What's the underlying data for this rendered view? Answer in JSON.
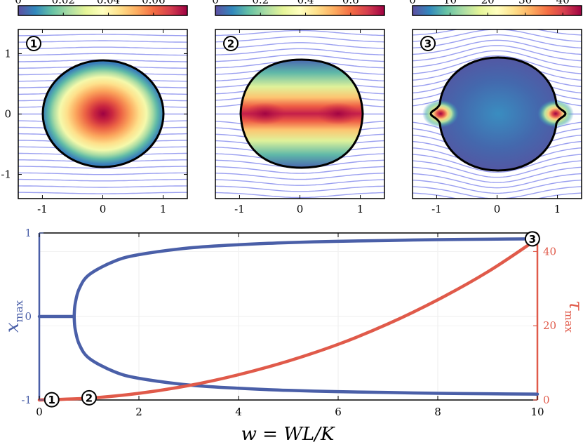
{
  "chart_data": [
    {
      "type": "heatmap",
      "panel": "1",
      "colorbar_ticks": [
        "0",
        "0.02",
        "0.04",
        "0.06"
      ],
      "colorbar_range": [
        0,
        0.075
      ],
      "x_ticks": [
        "-1",
        "0",
        "1"
      ],
      "y_ticks": [
        "1",
        "0",
        "-1"
      ],
      "xlim": [
        -1.4,
        1.4
      ],
      "ylim": [
        -1.4,
        1.4
      ],
      "marker": "①"
    },
    {
      "type": "heatmap",
      "panel": "2",
      "colorbar_ticks": [
        "0",
        "0.2",
        "0.4",
        "0.6"
      ],
      "colorbar_range": [
        0,
        0.75
      ],
      "x_ticks": [
        "-1",
        "0",
        "1"
      ],
      "xlim": [
        -1.4,
        1.4
      ],
      "ylim": [
        -1.4,
        1.4
      ],
      "marker": "②"
    },
    {
      "type": "heatmap",
      "panel": "3",
      "colorbar_ticks": [
        "0",
        "10",
        "20",
        "30",
        "40"
      ],
      "colorbar_range": [
        0,
        45
      ],
      "x_ticks": [
        "-1",
        "0",
        "1"
      ],
      "xlim": [
        -1.4,
        1.4
      ],
      "ylim": [
        -1.4,
        1.4
      ],
      "marker": "③"
    },
    {
      "type": "line",
      "xlabel": "w = WL/K",
      "ylabel_left": "x",
      "ylabel_left_sub": "max",
      "ylabel_right": "τ",
      "ylabel_right_sub": "max",
      "x_ticks": [
        "0",
        "2",
        "4",
        "6",
        "8",
        "10"
      ],
      "y_left_ticks": [
        "1",
        "0",
        "-1"
      ],
      "y_right_ticks": [
        "40",
        "20",
        "0"
      ],
      "xlim": [
        0,
        10
      ],
      "ylim_left": [
        -1,
        1
      ],
      "ylim_right": [
        0,
        45
      ],
      "bifurcation_w": 0.7,
      "series": [
        {
          "name": "x_max upper",
          "color": "#4a5fa8",
          "x": [
            0,
            0.7,
            0.72,
            0.8,
            1,
            1.5,
            2,
            3,
            4,
            5,
            6,
            7,
            8,
            9,
            10
          ],
          "y": [
            0,
            0,
            0.15,
            0.33,
            0.5,
            0.66,
            0.74,
            0.82,
            0.86,
            0.885,
            0.9,
            0.91,
            0.92,
            0.925,
            0.93
          ]
        },
        {
          "name": "x_max lower",
          "color": "#4a5fa8",
          "x": [
            0.7,
            0.72,
            0.8,
            1,
            1.5,
            2,
            3,
            4,
            5,
            6,
            7,
            8,
            9,
            10
          ],
          "y": [
            0,
            -0.15,
            -0.33,
            -0.5,
            -0.66,
            -0.74,
            -0.82,
            -0.86,
            -0.885,
            -0.9,
            -0.91,
            -0.92,
            -0.925,
            -0.93
          ]
        },
        {
          "name": "tau_max",
          "color": "#e05a4a",
          "x": [
            0,
            1,
            2,
            3,
            4,
            5,
            6,
            7,
            8,
            9,
            9.9
          ],
          "y": [
            0,
            0.5,
            1.8,
            3.9,
            6.8,
            10.5,
            15,
            20.5,
            27,
            34.5,
            42.5
          ]
        }
      ],
      "markers": [
        {
          "label": "①",
          "w": 0.25,
          "on": "x_max_min"
        },
        {
          "label": "②",
          "w": 1.0,
          "on": "tau"
        },
        {
          "label": "③",
          "w": 9.9,
          "on": "x_max_max"
        }
      ]
    }
  ]
}
